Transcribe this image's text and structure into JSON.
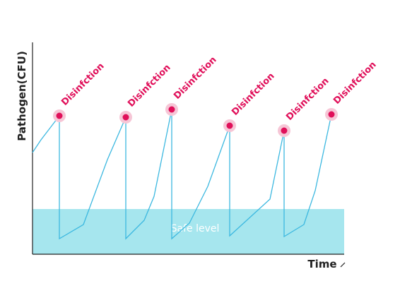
{
  "y_axis_label": "Pathogen(CFU)",
  "x_axis_label": "Time",
  "band_label": "Safe level",
  "events": [
    {
      "label": "Disinfction"
    },
    {
      "label": "Disinfction"
    },
    {
      "label": "Disinfction"
    },
    {
      "label": "Disinfction"
    },
    {
      "label": "Disinfction"
    },
    {
      "label": "Disinfction"
    }
  ]
}
